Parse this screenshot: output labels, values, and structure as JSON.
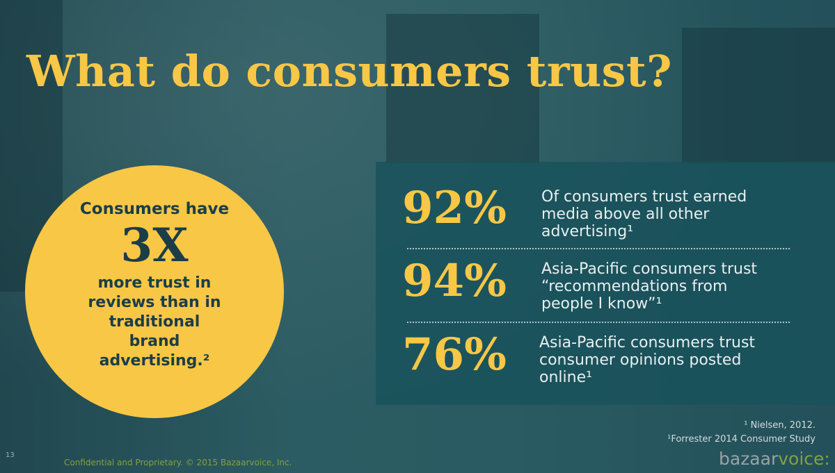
{
  "title": "What do consumers trust?",
  "callout": {
    "intro": "Consumers have",
    "figure": "3X",
    "text": "more trust in reviews than in traditional brand advertising.²"
  },
  "stats": [
    {
      "value": "92%",
      "text": "Of consumers trust earned media above all other advertising¹"
    },
    {
      "value": "94%",
      "text": "Asia-Pacific consumers trust “recommendations from people I know”¹"
    },
    {
      "value": "76%",
      "text": "Asia-Pacific consumers trust consumer opinions posted online¹"
    }
  ],
  "footnotes": [
    "¹ Nielsen, 2012.",
    "¹Forrester 2014 Consumer Study"
  ],
  "footer": {
    "page_number": "13",
    "confidential": "Confidential and Proprietary. © 2015 Bazaarvoice, Inc.",
    "logo_a": "bazaar",
    "logo_b": "voice",
    "logo_c": ":"
  }
}
